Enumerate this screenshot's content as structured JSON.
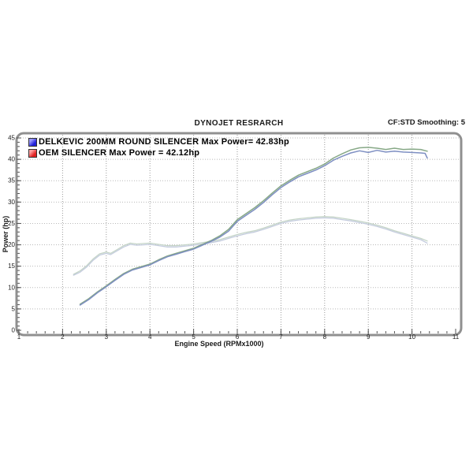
{
  "header": {
    "title": "DYNOJET RESRARCH",
    "right_label": "CF:STD Smoothing: 5"
  },
  "legend": {
    "items": [
      {
        "label": "DELKEVIC 200MM ROUND SILENCER Max Power= 42.83hp",
        "swatch_color": "#2020d8",
        "swatch_highlight": "#9a9aff"
      },
      {
        "label": "OEM SILENCER Max Power = 42.12hp",
        "swatch_color": "#e02020",
        "swatch_highlight": "#ffa0a0"
      }
    ]
  },
  "chart_data": {
    "type": "line",
    "title": "DYNOJET RESRARCH",
    "xlabel": "Engine Speed (RPMx1000)",
    "ylabel": "Power (hp)",
    "xlim": [
      1,
      11
    ],
    "ylim": [
      0,
      45
    ],
    "x_ticks": [
      1,
      2,
      3,
      4,
      5,
      6,
      7,
      8,
      9,
      10,
      11
    ],
    "y_ticks": [
      0,
      5,
      10,
      15,
      20,
      25,
      30,
      35,
      40,
      45
    ],
    "x_minor_step": 0.2,
    "y_minor_step": 1,
    "grid": "dotted",
    "legend_position": "top-left",
    "series": [
      {
        "name": "delkevic-secondary-trace",
        "color": "#c4d4c7",
        "width": 1.3,
        "points": [
          [
            2.25,
            13.1
          ],
          [
            2.4,
            13.9
          ],
          [
            2.55,
            15.1
          ],
          [
            2.7,
            16.7
          ],
          [
            2.85,
            17.9
          ],
          [
            3.0,
            18.3
          ],
          [
            3.1,
            18.0
          ],
          [
            3.25,
            18.9
          ],
          [
            3.4,
            19.8
          ],
          [
            3.55,
            20.4
          ],
          [
            3.7,
            20.2
          ],
          [
            3.85,
            20.3
          ],
          [
            4.0,
            20.4
          ],
          [
            4.2,
            20.1
          ],
          [
            4.4,
            19.8
          ],
          [
            4.6,
            19.8
          ],
          [
            4.8,
            20.0
          ],
          [
            5.0,
            20.2
          ],
          [
            5.2,
            20.5
          ],
          [
            5.4,
            20.8
          ],
          [
            5.6,
            21.2
          ],
          [
            5.8,
            21.8
          ],
          [
            6.0,
            22.4
          ],
          [
            6.2,
            22.9
          ],
          [
            6.4,
            23.3
          ],
          [
            6.6,
            23.9
          ],
          [
            6.8,
            24.6
          ],
          [
            7.0,
            25.3
          ],
          [
            7.2,
            25.8
          ],
          [
            7.4,
            26.1
          ],
          [
            7.6,
            26.3
          ],
          [
            7.8,
            26.5
          ],
          [
            8.0,
            26.6
          ],
          [
            8.2,
            26.5
          ],
          [
            8.4,
            26.2
          ],
          [
            8.6,
            25.9
          ],
          [
            8.8,
            25.5
          ],
          [
            9.0,
            25.1
          ],
          [
            9.2,
            24.6
          ],
          [
            9.4,
            24.0
          ],
          [
            9.6,
            23.3
          ],
          [
            9.8,
            22.7
          ],
          [
            10.0,
            22.1
          ],
          [
            10.2,
            21.5
          ],
          [
            10.35,
            20.9
          ]
        ]
      },
      {
        "name": "oem-secondary-trace",
        "color": "#c4ccde",
        "width": 1.3,
        "points": [
          [
            2.25,
            12.9
          ],
          [
            2.4,
            13.6
          ],
          [
            2.55,
            14.8
          ],
          [
            2.7,
            16.4
          ],
          [
            2.85,
            17.6
          ],
          [
            3.0,
            18.0
          ],
          [
            3.1,
            17.7
          ],
          [
            3.25,
            18.6
          ],
          [
            3.4,
            19.5
          ],
          [
            3.55,
            20.1
          ],
          [
            3.7,
            19.9
          ],
          [
            3.85,
            20.0
          ],
          [
            4.0,
            20.1
          ],
          [
            4.2,
            19.8
          ],
          [
            4.4,
            19.5
          ],
          [
            4.6,
            19.5
          ],
          [
            4.8,
            19.7
          ],
          [
            5.0,
            19.9
          ],
          [
            5.2,
            20.2
          ],
          [
            5.4,
            20.5
          ],
          [
            5.6,
            20.9
          ],
          [
            5.8,
            21.5
          ],
          [
            6.0,
            22.1
          ],
          [
            6.2,
            22.6
          ],
          [
            6.4,
            23.0
          ],
          [
            6.6,
            23.6
          ],
          [
            6.8,
            24.3
          ],
          [
            7.0,
            25.0
          ],
          [
            7.2,
            25.5
          ],
          [
            7.4,
            25.8
          ],
          [
            7.6,
            26.0
          ],
          [
            7.8,
            26.2
          ],
          [
            8.0,
            26.3
          ],
          [
            8.2,
            26.2
          ],
          [
            8.4,
            25.9
          ],
          [
            8.6,
            25.6
          ],
          [
            8.8,
            25.2
          ],
          [
            9.0,
            24.8
          ],
          [
            9.2,
            24.3
          ],
          [
            9.4,
            23.7
          ],
          [
            9.6,
            23.0
          ],
          [
            9.8,
            22.4
          ],
          [
            10.0,
            21.8
          ],
          [
            10.2,
            21.2
          ],
          [
            10.35,
            20.4
          ]
        ]
      },
      {
        "name": "delkevic-power",
        "color": "#86a886",
        "width": 1.5,
        "max_power_hp": 42.83,
        "points": [
          [
            2.4,
            6.1
          ],
          [
            2.6,
            7.4
          ],
          [
            2.8,
            9.0
          ],
          [
            3.0,
            10.4
          ],
          [
            3.2,
            11.9
          ],
          [
            3.4,
            13.3
          ],
          [
            3.6,
            14.3
          ],
          [
            3.8,
            14.9
          ],
          [
            4.0,
            15.5
          ],
          [
            4.2,
            16.5
          ],
          [
            4.4,
            17.4
          ],
          [
            4.6,
            18.0
          ],
          [
            4.8,
            18.6
          ],
          [
            5.0,
            19.2
          ],
          [
            5.2,
            20.1
          ],
          [
            5.4,
            21.0
          ],
          [
            5.6,
            22.1
          ],
          [
            5.8,
            23.6
          ],
          [
            6.0,
            25.9
          ],
          [
            6.2,
            27.3
          ],
          [
            6.4,
            28.7
          ],
          [
            6.6,
            30.3
          ],
          [
            6.8,
            32.1
          ],
          [
            7.0,
            33.8
          ],
          [
            7.2,
            35.1
          ],
          [
            7.4,
            36.3
          ],
          [
            7.6,
            37.1
          ],
          [
            7.8,
            37.9
          ],
          [
            8.0,
            38.9
          ],
          [
            8.2,
            40.3
          ],
          [
            8.4,
            41.3
          ],
          [
            8.6,
            42.2
          ],
          [
            8.8,
            42.7
          ],
          [
            9.0,
            42.8
          ],
          [
            9.2,
            42.6
          ],
          [
            9.4,
            42.3
          ],
          [
            9.6,
            42.6
          ],
          [
            9.8,
            42.3
          ],
          [
            10.0,
            42.4
          ],
          [
            10.2,
            42.3
          ],
          [
            10.35,
            41.9
          ]
        ]
      },
      {
        "name": "oem-power",
        "color": "#7e8fc2",
        "width": 1.5,
        "max_power_hp": 42.12,
        "points": [
          [
            2.4,
            5.9
          ],
          [
            2.6,
            7.2
          ],
          [
            2.8,
            8.8
          ],
          [
            3.0,
            10.2
          ],
          [
            3.2,
            11.7
          ],
          [
            3.4,
            13.1
          ],
          [
            3.6,
            14.1
          ],
          [
            3.8,
            14.7
          ],
          [
            4.0,
            15.3
          ],
          [
            4.2,
            16.3
          ],
          [
            4.4,
            17.2
          ],
          [
            4.6,
            17.8
          ],
          [
            4.8,
            18.4
          ],
          [
            5.0,
            19.0
          ],
          [
            5.2,
            19.9
          ],
          [
            5.4,
            20.8
          ],
          [
            5.6,
            21.8
          ],
          [
            5.8,
            23.2
          ],
          [
            6.0,
            25.5
          ],
          [
            6.2,
            26.9
          ],
          [
            6.4,
            28.3
          ],
          [
            6.6,
            29.9
          ],
          [
            6.8,
            31.7
          ],
          [
            7.0,
            33.4
          ],
          [
            7.2,
            34.7
          ],
          [
            7.4,
            35.9
          ],
          [
            7.6,
            36.7
          ],
          [
            7.8,
            37.5
          ],
          [
            8.0,
            38.5
          ],
          [
            8.2,
            39.8
          ],
          [
            8.4,
            40.7
          ],
          [
            8.6,
            41.5
          ],
          [
            8.8,
            42.0
          ],
          [
            9.0,
            41.6
          ],
          [
            9.2,
            42.1
          ],
          [
            9.4,
            41.7
          ],
          [
            9.6,
            41.9
          ],
          [
            9.8,
            41.7
          ],
          [
            10.0,
            41.6
          ],
          [
            10.2,
            41.5
          ],
          [
            10.3,
            41.4
          ],
          [
            10.35,
            40.3
          ]
        ]
      }
    ],
    "style": {
      "frame_color": "#909090",
      "grid_h_color": "#b8b8b8",
      "grid_v_color": "#9a9a9a",
      "tick_color": "#555555",
      "tick_label_color": "#222222"
    }
  }
}
